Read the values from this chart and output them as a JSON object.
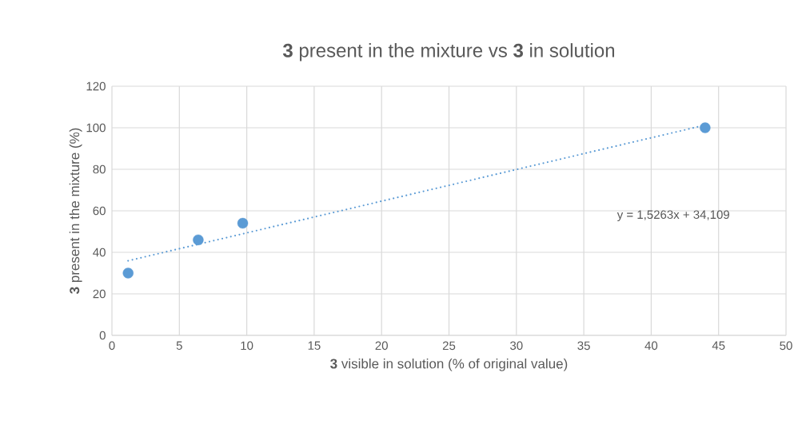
{
  "chart_data": {
    "type": "scatter",
    "title": "**3** present in the mixture vs **3** in solution",
    "xlabel": "**3** visible in solution (% of original value)",
    "ylabel": "**3** present in the mixture (%)",
    "series": [
      {
        "color": "#5b9bd5",
        "x": [
          1.2,
          6.4,
          9.7,
          44
        ],
        "values": [
          30,
          46,
          54,
          100
        ],
        "marker": "circle"
      },
      {
        "type": "line",
        "color": "#5b9bd5",
        "x": [
          1.2,
          44
        ],
        "values": [
          35.94,
          101.27
        ],
        "line_style": "dotted",
        "marker": "none"
      }
    ],
    "xlim": [
      0,
      50
    ],
    "xticks": [
      0,
      5,
      10,
      15,
      20,
      25,
      30,
      35,
      40,
      45,
      50
    ],
    "ylim": [
      0,
      120
    ],
    "yticks": [
      0,
      20,
      40,
      60,
      80,
      100,
      120
    ],
    "grid": true,
    "annotations": [
      "y = 1,5263x + 34,109"
    ]
  }
}
